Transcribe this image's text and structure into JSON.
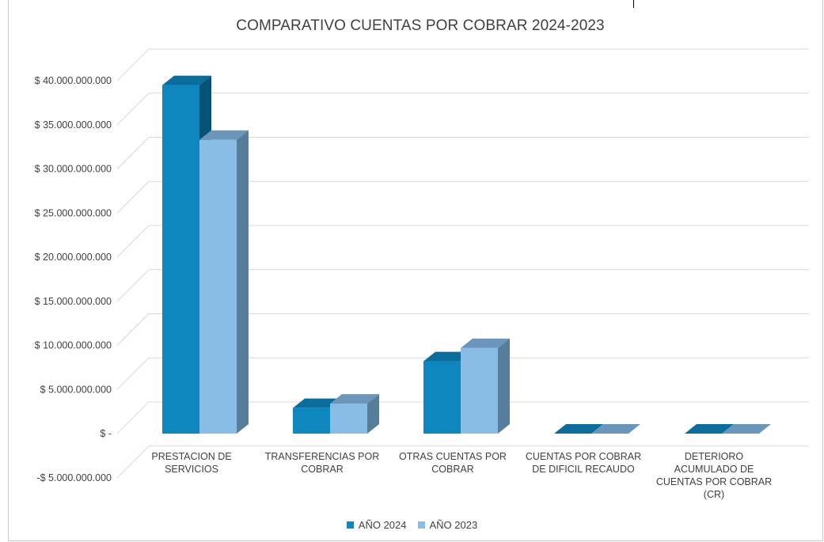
{
  "chart_data": {
    "type": "bar",
    "title": "COMPARATIVO CUENTAS POR COBRAR 2024-2023",
    "categories": [
      [
        "PRESTACION DE",
        "SERVICIOS"
      ],
      [
        "TRANSFERENCIAS POR",
        "COBRAR"
      ],
      [
        "OTRAS CUENTAS POR",
        "COBRAR"
      ],
      [
        "CUENTAS POR COBRAR",
        "DE DIFICIL RECAUDO"
      ],
      [
        "DETERIORO",
        "ACUMULADO DE",
        "CUENTAS POR COBRAR",
        "(CR)"
      ]
    ],
    "series": [
      {
        "name": "AÑO 2024",
        "values": [
          39500000000,
          2900000000,
          8200000000,
          0,
          0
        ],
        "color": "#0e87bf",
        "side": "#055478",
        "top": "#0a6d9b"
      },
      {
        "name": "AÑO 2023",
        "values": [
          33300000000,
          3400000000,
          9700000000,
          0,
          0
        ],
        "color": "#8abde5",
        "side": "#567d99",
        "top": "#6b96b9"
      }
    ],
    "y_ticks": [
      {
        "value": 40000000000,
        "label": "$ 40.000.000.000"
      },
      {
        "value": 35000000000,
        "label": "$ 35.000.000.000"
      },
      {
        "value": 30000000000,
        "label": "$ 30.000.000.000"
      },
      {
        "value": 25000000000,
        "label": "$ 25.000.000.000"
      },
      {
        "value": 20000000000,
        "label": "$ 20.000.000.000"
      },
      {
        "value": 15000000000,
        "label": "$ 15.000.000.000"
      },
      {
        "value": 10000000000,
        "label": "$ 10.000.000.000"
      },
      {
        "value": 5000000000,
        "label": "$ 5.000.000.000"
      },
      {
        "value": 0,
        "label": "$ -"
      },
      {
        "value": -5000000000,
        "label": "-$ 5.000.000.000"
      }
    ],
    "ylim": [
      -5000000000,
      40000000000
    ],
    "grid": true,
    "legend_position": "bottom"
  }
}
